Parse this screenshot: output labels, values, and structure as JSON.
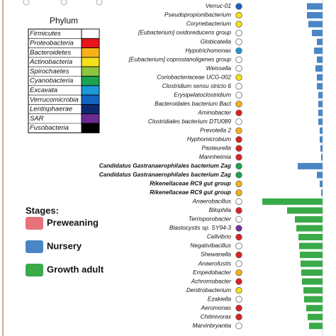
{
  "chart_data": {
    "type": "lda-bar",
    "categories": [
      "Verruc-01",
      "Pseudopropionibacterium",
      "Corynebacterium",
      "[Eubacterium] oxidoreducens group",
      "Globicatella",
      "Hypotrichomonas",
      "[Eubacterium] coprostanoligenes group",
      "Weissella",
      "Coriobacteriaceae UCG-002",
      "Clostridium sensu stricto 6",
      "Erysipelatoclostridium",
      "Bacteroidales bacterium Bact",
      "Aminobacter",
      "Clostridiales bacterium DTU089",
      "Prevotella 2",
      "Hyphomicrobium",
      "Pasteurella",
      "Mannheimia",
      "Candidatus Gastranaerophilales bacterium Zag",
      "Candidatus Gastranaerophilales bacterium Zag",
      "Rikenellaceae RC9 gut group",
      "Rikenellaceae RC9 gut group",
      "Anaerobacillus",
      "Bilophila",
      "Terrisporobacter",
      "Blastocystis sp. SY94-3",
      "Cellvibrio",
      "Negativibacillus",
      "Shewanella",
      "Anaerofustis",
      "Empedobacter",
      "Achromobacter",
      "Denitrobacterium",
      "Ezakiella",
      "Aeromonas",
      "Chitinivorax",
      "Marvinbryantia"
    ],
    "values": [
      -1.1,
      -1.1,
      -1.0,
      -0.75,
      -0.4,
      -0.6,
      -0.4,
      -0.5,
      -0.4,
      -0.4,
      -0.3,
      -0.3,
      -0.3,
      -0.3,
      -0.2,
      -0.2,
      -0.15,
      -0.1,
      -1.75,
      -0.4,
      -0.2,
      -0.1,
      -4.25,
      -2.5,
      -1.95,
      -1.85,
      -1.7,
      -1.65,
      -1.6,
      -1.55,
      -1.5,
      -1.45,
      -1.35,
      -1.3,
      -1.15,
      -1.05,
      -0.95
    ],
    "bold": [
      false,
      false,
      false,
      false,
      false,
      false,
      false,
      false,
      false,
      false,
      false,
      false,
      false,
      false,
      false,
      false,
      false,
      false,
      true,
      true,
      true,
      true,
      false,
      false,
      false,
      false,
      false,
      false,
      false,
      false,
      false,
      false,
      false,
      false,
      false,
      false,
      false
    ],
    "bar_colors": [
      "#4a86c5",
      "#4a86c5",
      "#4a86c5",
      "#4a86c5",
      "#4a86c5",
      "#4a86c5",
      "#4a86c5",
      "#4a86c5",
      "#4a86c5",
      "#4a86c5",
      "#4a86c5",
      "#4a86c5",
      "#4a86c5",
      "#4a86c5",
      "#4a86c5",
      "#4a86c5",
      "#4a86c5",
      "#4a86c5",
      "#4a86c5",
      "#4a86c5",
      "#4a86c5",
      "#4a86c5",
      "#3aaa48",
      "#3aaa48",
      "#3aaa48",
      "#3aaa48",
      "#3aaa48",
      "#3aaa48",
      "#3aaa48",
      "#3aaa48",
      "#3aaa48",
      "#3aaa48",
      "#3aaa48",
      "#3aaa48",
      "#3aaa48",
      "#3aaa48",
      "#3aaa48"
    ],
    "dot_colors": [
      "#1565c0",
      "#f5e21a",
      "#f5e21a",
      "#ffffff",
      "#ffffff",
      "#1a9ad6",
      "#ffffff",
      "#ffffff",
      "#f5e21a",
      "#ffffff",
      "#ffffff",
      "#f7b21a",
      "#e02020",
      "#ffffff",
      "#f7b21a",
      "#e02020",
      "#e02020",
      "#e02020",
      "#1aa350",
      "#1aa350",
      "#f7b21a",
      "#f7b21a",
      "#ffffff",
      "#e02020",
      "#ffffff",
      "#7a2fa0",
      "#e02020",
      "#ffffff",
      "#e02020",
      "#ffffff",
      "#f7b21a",
      "#e02020",
      "#f5e21a",
      "#ffffff",
      "#e02020",
      "#e02020",
      "#ffffff"
    ],
    "xlim": [
      -5,
      0.95
    ],
    "phylum_legend": {
      "title": "Phylum",
      "names": [
        "Firmicutes",
        "Proteobacteria",
        "Bacteroidetes",
        "Actinobacteria",
        "Spirochaetes",
        "Cyanobacteria",
        "Excavata",
        "Verrucomicrobia",
        "Lentisphaerae",
        "SAR",
        "Fusobacteria"
      ],
      "colors": [
        "#ffffff",
        "#e8141a",
        "#f7b21a",
        "#f5e21a",
        "#8cc63f",
        "#1aa350",
        "#1a9ad6",
        "#1565c0",
        "#0d2a6e",
        "#6a2c91",
        "#000000"
      ]
    },
    "stage_legend": {
      "title": "Stages:",
      "names": [
        "Preweaning",
        "Nursery",
        "Growth adult"
      ],
      "colors": [
        "#e8727a",
        "#4a86c5",
        "#3aaa48"
      ]
    }
  }
}
